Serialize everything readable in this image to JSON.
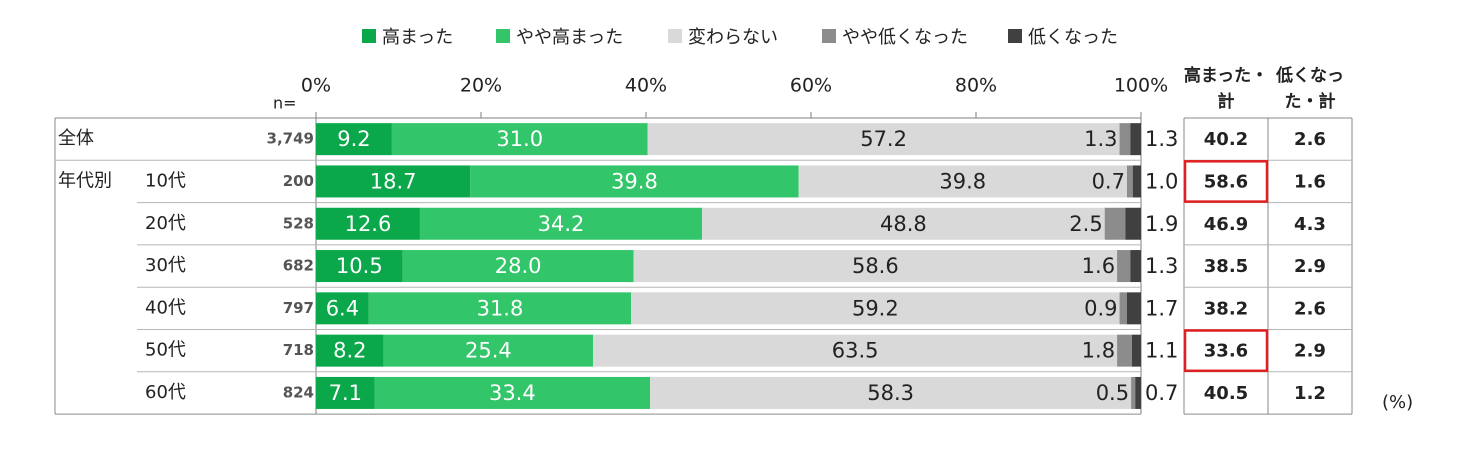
{
  "chart_data": {
    "type": "bar",
    "stacked": true,
    "orientation": "horizontal",
    "legend_position": "top",
    "xlim": [
      0,
      100
    ],
    "x_ticks": [
      "0%",
      "20%",
      "40%",
      "60%",
      "80%",
      "100%"
    ],
    "n_label": "n=",
    "unit_label": "(%)",
    "group_label": "年代別",
    "rows": [
      {
        "label": "全体",
        "n": "3,749",
        "values": [
          9.2,
          31.0,
          57.2,
          1.3,
          1.3
        ],
        "total_up": "40.2",
        "total_down": "2.6"
      },
      {
        "label": "10代",
        "n": "200",
        "values": [
          18.7,
          39.8,
          39.8,
          0.7,
          1.0
        ],
        "total_up": "58.6",
        "total_down": "1.6",
        "highlight": true
      },
      {
        "label": "20代",
        "n": "528",
        "values": [
          12.6,
          34.2,
          48.8,
          2.5,
          1.9
        ],
        "total_up": "46.9",
        "total_down": "4.3"
      },
      {
        "label": "30代",
        "n": "682",
        "values": [
          10.5,
          28.0,
          58.6,
          1.6,
          1.3
        ],
        "total_up": "38.5",
        "total_down": "2.9"
      },
      {
        "label": "40代",
        "n": "797",
        "values": [
          6.4,
          31.8,
          59.2,
          0.9,
          1.7
        ],
        "total_up": "38.2",
        "total_down": "2.6"
      },
      {
        "label": "50代",
        "n": "718",
        "values": [
          8.2,
          25.4,
          63.5,
          1.8,
          1.1
        ],
        "total_up": "33.6",
        "total_down": "2.9",
        "highlight": true
      },
      {
        "label": "60代",
        "n": "824",
        "values": [
          7.1,
          33.4,
          58.3,
          0.5,
          0.7
        ],
        "total_up": "40.5",
        "total_down": "1.2"
      }
    ],
    "series": [
      {
        "name": "高まった",
        "color": "#0aa84a"
      },
      {
        "name": "やや高まった",
        "color": "#33c56a"
      },
      {
        "name": "変わらない",
        "color": "#d9d9d9"
      },
      {
        "name": "やや低くなった",
        "color": "#8c8c8c"
      },
      {
        "name": "低くなった",
        "color": "#404040"
      }
    ],
    "summary_headers": [
      {
        "line1": "高まった・",
        "line2": "計"
      },
      {
        "line1": "低くなっ",
        "line2": "た・計"
      }
    ],
    "highlight_color": "#e02020"
  }
}
